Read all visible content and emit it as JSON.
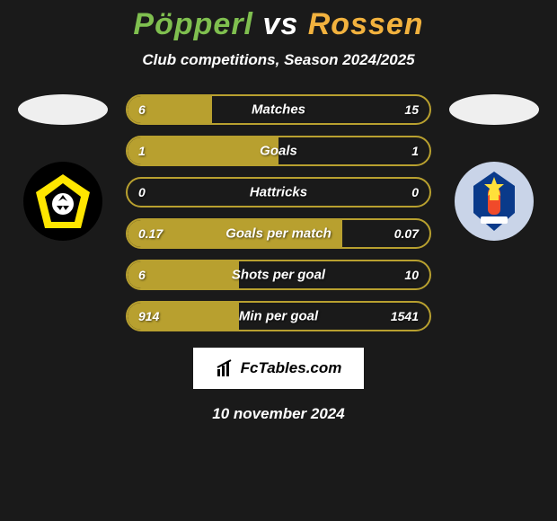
{
  "title": {
    "left": "Pöpperl",
    "vs": "vs",
    "right": "Rossen"
  },
  "title_color_left": "#7fbf4f",
  "title_color_vs": "#ffffff",
  "title_color_right": "#f2b23e",
  "subtitle": "Club competitions, Season 2024/2025",
  "face_left_color": "#efefef",
  "face_right_color": "#efefef",
  "badge_left": {
    "bg": "#000000",
    "accent": "#ffe600",
    "text": "VVV"
  },
  "badge_right": {
    "bg": "#0a3a8a",
    "accent": "#f04a2a",
    "text": "Telstar"
  },
  "bars": [
    {
      "label": "Matches",
      "left": "6",
      "right": "15",
      "fill_pct": 28
    },
    {
      "label": "Goals",
      "left": "1",
      "right": "1",
      "fill_pct": 50
    },
    {
      "label": "Hattricks",
      "left": "0",
      "right": "0",
      "fill_pct": 0
    },
    {
      "label": "Goals per match",
      "left": "0.17",
      "right": "0.07",
      "fill_pct": 71
    },
    {
      "label": "Shots per goal",
      "left": "6",
      "right": "10",
      "fill_pct": 37
    },
    {
      "label": "Min per goal",
      "left": "914",
      "right": "1541",
      "fill_pct": 37
    }
  ],
  "bar_border_color": "#b8a02f",
  "bar_fill_color": "#b8a02f",
  "brand": "FcTables.com",
  "date": "10 november 2024",
  "background_color": "#1a1a1a"
}
